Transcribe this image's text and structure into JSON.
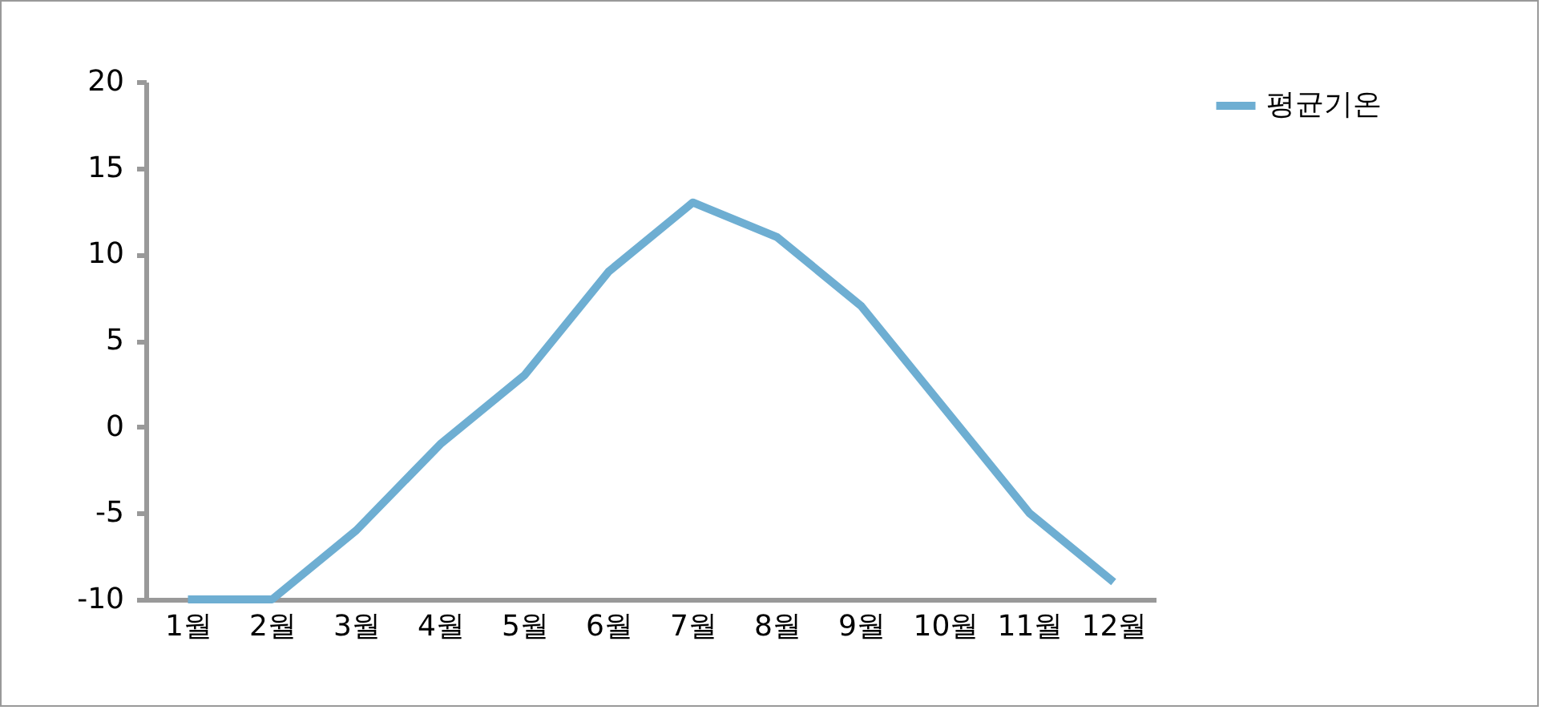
{
  "chart_data": {
    "type": "line",
    "categories": [
      "1월",
      "2월",
      "3월",
      "4월",
      "5월",
      "6월",
      "7월",
      "8월",
      "9월",
      "10월",
      "11월",
      "12월"
    ],
    "series": [
      {
        "name": "평균기온",
        "color": "#6eaed2",
        "values": [
          -10,
          -10,
          -6,
          -1,
          3,
          9,
          13,
          11,
          7,
          1,
          -5,
          -9
        ]
      }
    ],
    "ylim": [
      -10,
      20
    ],
    "yticks": [
      -10,
      -5,
      0,
      5,
      10,
      15,
      20
    ],
    "grid": false,
    "legend": "right",
    "marker": "none",
    "line_style": "solid"
  }
}
